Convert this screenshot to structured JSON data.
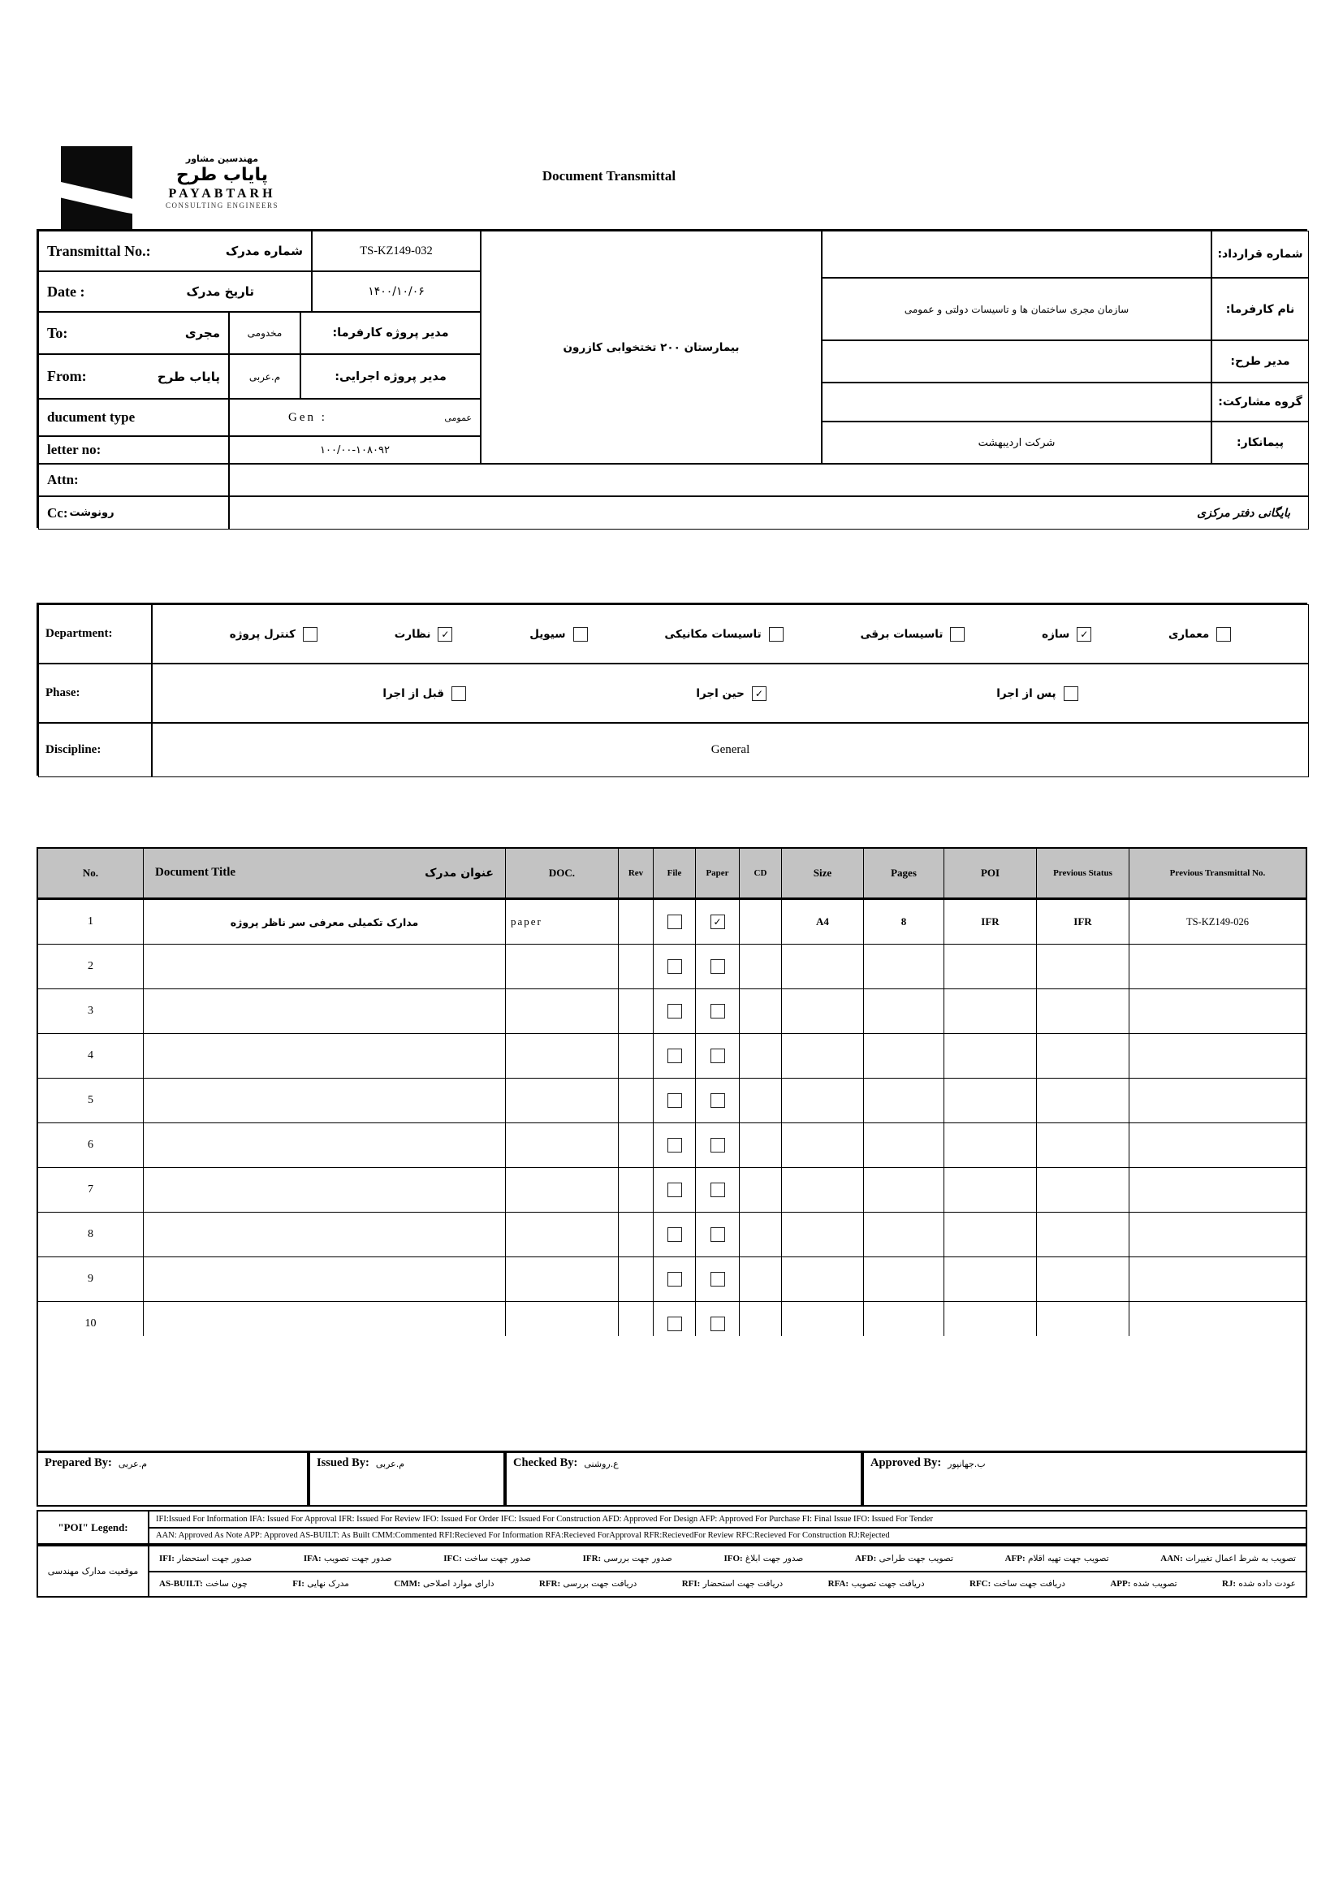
{
  "letterhead": {
    "brand_fa_small": "مهندسین مشاور",
    "brand_fa": "پایاب طرح",
    "brand_en": "PAYABTARH",
    "brand_sub": "CONSULTING ENGINEERS",
    "title": "Document Transmittal"
  },
  "top": {
    "transmittal_label_en": "Transmittal No.:",
    "transmittal_label_fa": "شماره مدرک",
    "transmittal_no": "TS-KZ149-032",
    "date_label_en": "Date :",
    "date_label_fa": "تاریخ مدرک",
    "date_value": "۱۴۰۰/۱۰/۰۶",
    "to_label": "To:",
    "to_value": "مجری",
    "to_via": "مخدومی",
    "client_pm_label": "مدیر پروژه کارفرما:",
    "from_label": "From:",
    "from_value": "پایاب طرح",
    "from_via": "م.عربی",
    "exec_pm_label": "مدیر پروژه اجرایی:",
    "doctype_label": "ducument type",
    "doctype_value": "Gen :",
    "doctype_fa": "عمومی",
    "letterno_label": "letter no:",
    "letterno_value": "۱۰۰/۰۰-۱۰۸۰۹۲",
    "attn_label": "Attn:",
    "cc_label_en": "Cc:",
    "cc_label_fa": "رونوشت",
    "cc_value": "بایگانی دفتر مرکزی",
    "project_name": "بیمارستان ۲۰۰ تختخوابی کازرون",
    "contract_label": "شماره قرارداد:",
    "client_label": "نام کارفرما:",
    "client_value": "سازمان مجری ساختمان ها و تاسیسات دولتی و عمومی",
    "design_manager_label": "مدیر طرح:",
    "jv_label": "گروه مشارکت:",
    "contractor_label": "پیمانکار:",
    "contractor_value": "شرکت اردیبهشت"
  },
  "sections": {
    "department_label": "Department:",
    "departments": [
      {
        "label": "کنترل پروژه",
        "checked": false
      },
      {
        "label": "نظارت",
        "checked": true
      },
      {
        "label": "سیویل",
        "checked": false
      },
      {
        "label": "تاسیسات مکانیکی",
        "checked": false
      },
      {
        "label": "تاسیسات برقی",
        "checked": false
      },
      {
        "label": "سازه",
        "checked": true
      },
      {
        "label": "معماری",
        "checked": false
      }
    ],
    "phase_label": "Phase:",
    "phases": [
      {
        "label": "قبل از اجرا",
        "checked": false
      },
      {
        "label": "حین اجرا",
        "checked": true
      },
      {
        "label": "پس از اجرا",
        "checked": false
      }
    ],
    "discipline_label": "Discipline:",
    "discipline_value": "General"
  },
  "doc_table": {
    "headers": {
      "no": "No.",
      "title_en": "Document Title",
      "title_fa": "عنوان مدرک",
      "doc": "DOC.",
      "rev": "Rev",
      "file": "File",
      "paper": "Paper",
      "cd": "CD",
      "size": "Size",
      "pages": "Pages",
      "poi": "POI",
      "prev_status": "Previous Status",
      "prev_transmittal": "Previous Transmittal No."
    },
    "rows": [
      {
        "no": "1",
        "title": "مدارک تکمیلی معرفی سر ناظر پروژه",
        "doc": "paper",
        "rev": "",
        "file": false,
        "paper": true,
        "cd": "",
        "size": "A4",
        "pages": "8",
        "poi": "IFR",
        "prev_status": "IFR",
        "prev_transmittal": "TS-KZ149-026"
      },
      {
        "no": "2",
        "title": "",
        "doc": "",
        "rev": "",
        "file": false,
        "paper": false,
        "cd": "",
        "size": "",
        "pages": "",
        "poi": "",
        "prev_status": "",
        "prev_transmittal": ""
      },
      {
        "no": "3",
        "title": "",
        "doc": "",
        "rev": "",
        "file": false,
        "paper": false,
        "cd": "",
        "size": "",
        "pages": "",
        "poi": "",
        "prev_status": "",
        "prev_transmittal": ""
      },
      {
        "no": "4",
        "title": "",
        "doc": "",
        "rev": "",
        "file": false,
        "paper": false,
        "cd": "",
        "size": "",
        "pages": "",
        "poi": "",
        "prev_status": "",
        "prev_transmittal": ""
      },
      {
        "no": "5",
        "title": "",
        "doc": "",
        "rev": "",
        "file": false,
        "paper": false,
        "cd": "",
        "size": "",
        "pages": "",
        "poi": "",
        "prev_status": "",
        "prev_transmittal": ""
      },
      {
        "no": "6",
        "title": "",
        "doc": "",
        "rev": "",
        "file": false,
        "paper": false,
        "cd": "",
        "size": "",
        "pages": "",
        "poi": "",
        "prev_status": "",
        "prev_transmittal": ""
      },
      {
        "no": "7",
        "title": "",
        "doc": "",
        "rev": "",
        "file": false,
        "paper": false,
        "cd": "",
        "size": "",
        "pages": "",
        "poi": "",
        "prev_status": "",
        "prev_transmittal": ""
      },
      {
        "no": "8",
        "title": "",
        "doc": "",
        "rev": "",
        "file": false,
        "paper": false,
        "cd": "",
        "size": "",
        "pages": "",
        "poi": "",
        "prev_status": "",
        "prev_transmittal": ""
      },
      {
        "no": "9",
        "title": "",
        "doc": "",
        "rev": "",
        "file": false,
        "paper": false,
        "cd": "",
        "size": "",
        "pages": "",
        "poi": "",
        "prev_status": "",
        "prev_transmittal": ""
      },
      {
        "no": "10",
        "title": "",
        "doc": "",
        "rev": "",
        "file": false,
        "paper": false,
        "cd": "",
        "size": "",
        "pages": "",
        "poi": "",
        "prev_status": "",
        "prev_transmittal": ""
      }
    ]
  },
  "signatures": {
    "prepared_label": "Prepared By:",
    "prepared_value": "م.عربی",
    "issued_label": "Issued By:",
    "issued_value": "م.عربی",
    "checked_label": "Checked By:",
    "checked_value": "ع.روشنی",
    "approved_label": "Approved By:",
    "approved_value": "ب.جهانپور"
  },
  "legend": {
    "poi_label": "\"POI\" Legend:",
    "en_line1": "IFI:Issued For Information  IFA: Issued For Approval  IFR: Issued For Review   IFO: Issued For Order  IFC: Issued For Construction AFD: Approved For Design AFP: Approved For Purchase  FI: Final Issue   IFO: Issued For Tender",
    "en_line2": "AAN: Approved As Note   APP: Approved   AS-BUILT: As Built CMM:Commented   RFI:Recieved For Information   RFA:Recieved ForApproval   RFR:RecievedFor Review  RFC:Recieved For Construction  RJ:Rejected",
    "fa_label": "موقعیت مدارک مهندسی",
    "fa_line1": [
      {
        "abbr": "IFI:",
        "text": "صدور جهت استحضار"
      },
      {
        "abbr": "IFA:",
        "text": "صدور جهت تصویب"
      },
      {
        "abbr": "IFC:",
        "text": "صدور جهت ساخت"
      },
      {
        "abbr": "IFR:",
        "text": "صدور جهت بررسی"
      },
      {
        "abbr": "IFO:",
        "text": "صدور جهت ابلاغ"
      },
      {
        "abbr": "AFD:",
        "text": "تصویب جهت طراحی"
      },
      {
        "abbr": "AFP:",
        "text": "تصویب جهت تهیه اقلام"
      },
      {
        "abbr": "AAN:",
        "text": "تصویب به شرط اعمال تغییرات"
      }
    ],
    "fa_line2": [
      {
        "abbr": "AS-BUILT:",
        "text": "چون ساخت"
      },
      {
        "abbr": "FI:",
        "text": "مدرک نهایی"
      },
      {
        "abbr": "CMM:",
        "text": "دارای موارد اصلاحی"
      },
      {
        "abbr": "RFR:",
        "text": "دریافت جهت بررسی"
      },
      {
        "abbr": "RFI:",
        "text": "دریافت جهت استحضار"
      },
      {
        "abbr": "RFA:",
        "text": "دریافت جهت تصویب"
      },
      {
        "abbr": "RFC:",
        "text": "دریافت جهت ساخت"
      },
      {
        "abbr": "APP:",
        "text": "تصویب شده"
      },
      {
        "abbr": "RJ:",
        "text": "عودت داده شده"
      }
    ]
  },
  "colors": {
    "table_header_bg": "#c3c3c3",
    "ink": "#000000"
  }
}
